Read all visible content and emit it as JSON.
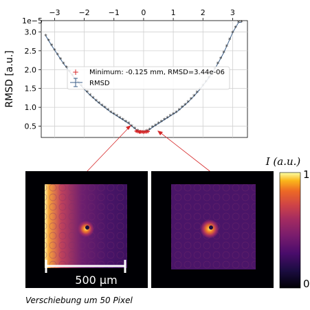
{
  "chart_data": {
    "type": "scatter",
    "title": "",
    "xlabel": "",
    "ylabel": "RMSD [a.u.]",
    "y_exponent": "1e−5",
    "xlim": [
      -3.45,
      3.5
    ],
    "ylim": [
      0.2,
      3.3
    ],
    "xticks": [
      -3,
      -2,
      -1,
      0,
      1,
      2,
      3
    ],
    "xtick_labels": [
      "−3",
      "−2",
      "−1",
      "0",
      "1",
      "2",
      "3"
    ],
    "yticks": [
      0.5,
      1.0,
      1.5,
      2.0,
      2.5,
      3.0
    ],
    "ytick_labels": [
      "0.5",
      "1.0",
      "1.5",
      "2.0",
      "2.5",
      "3.0"
    ],
    "grid": true,
    "legend_placement": "center-left",
    "series": [
      {
        "name": "RMSD",
        "x": [
          -3.3,
          -3.2,
          -3.1,
          -3.0,
          -2.9,
          -2.8,
          -2.7,
          -2.6,
          -2.5,
          -2.4,
          -2.3,
          -2.2,
          -2.1,
          -2.0,
          -1.9,
          -1.8,
          -1.7,
          -1.6,
          -1.5,
          -1.4,
          -1.3,
          -1.2,
          -1.1,
          -1.0,
          -0.9,
          -0.8,
          -0.7,
          -0.6,
          -0.5,
          -0.4,
          -0.3,
          -0.2,
          -0.1,
          0.0,
          0.1,
          0.2,
          0.3,
          0.4,
          0.5,
          0.6,
          0.7,
          0.8,
          0.9,
          1.0,
          1.1,
          1.2,
          1.3,
          1.4,
          1.5,
          1.6,
          1.7,
          1.8,
          1.9,
          2.0,
          2.1,
          2.2,
          2.3,
          2.4,
          2.5,
          2.6,
          2.7,
          2.8,
          2.9,
          3.0,
          3.1,
          3.2,
          3.3
        ],
        "y": [
          2.9,
          2.77,
          2.64,
          2.52,
          2.4,
          2.28,
          2.16,
          2.06,
          1.95,
          1.85,
          1.75,
          1.66,
          1.57,
          1.48,
          1.4,
          1.32,
          1.25,
          1.18,
          1.11,
          1.05,
          0.99,
          0.93,
          0.87,
          0.82,
          0.77,
          0.72,
          0.67,
          0.62,
          0.57,
          0.5,
          0.44,
          0.38,
          0.35,
          0.35,
          0.37,
          0.41,
          0.47,
          0.52,
          0.57,
          0.62,
          0.67,
          0.72,
          0.77,
          0.82,
          0.87,
          0.93,
          1.0,
          1.07,
          1.14,
          1.22,
          1.3,
          1.39,
          1.48,
          1.58,
          1.68,
          1.79,
          1.9,
          2.02,
          2.16,
          2.3,
          2.45,
          2.62,
          2.8,
          2.98,
          3.12,
          3.25,
          3.26
        ]
      },
      {
        "name": "Minimum: -0.125 mm, RMSD=3.44e-06",
        "x": [
          -0.25,
          -0.2,
          -0.15,
          -0.125,
          -0.1,
          -0.05,
          0.0,
          0.05,
          0.1,
          0.15
        ],
        "y": [
          0.37,
          0.36,
          0.35,
          0.344,
          0.35,
          0.35,
          0.34,
          0.35,
          0.35,
          0.36
        ]
      }
    ],
    "colorbar": {
      "label": "I (a.u.)",
      "tick_labels": [
        "1",
        "0"
      ]
    },
    "scale_bar_label": "500 µm",
    "caption": "Verschiebung um 50 Pixel"
  },
  "colors": {
    "rmsd_line": "#3b5f8a",
    "marker": "#333333",
    "minimum": "#d62728",
    "grid": "#d0d0d0",
    "arrow": "#d62728"
  }
}
